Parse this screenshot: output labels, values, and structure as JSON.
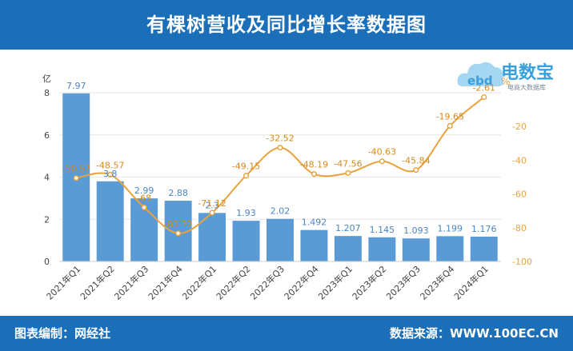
{
  "header": {
    "title": "有棵树营收及同比增长率数据图"
  },
  "footer": {
    "editor": "图表编制：网经社",
    "source": "数据来源：WWW.100EC.CN"
  },
  "logo": {
    "main": "电数宝",
    "sub": "电商大数据库",
    "mark": "ebd"
  },
  "chart_data": {
    "type": "bar",
    "categories": [
      "2021年Q1",
      "2021年Q2",
      "2021年Q3",
      "2021年Q4",
      "2022年Q1",
      "2022年Q2",
      "2022年Q3",
      "2022年Q4",
      "2023年Q1",
      "2023年Q2",
      "2023年Q3",
      "2023年Q4",
      "2024年Q1"
    ],
    "series": [
      {
        "type": "bar",
        "values": [
          7.97,
          3.8,
          2.99,
          2.88,
          2.3,
          1.93,
          2.02,
          1.492,
          1.207,
          1.145,
          1.093,
          1.199,
          1.176
        ],
        "labels": [
          "7.97",
          "3.8",
          "2.99",
          "2.88",
          "2.3",
          "1.93",
          "2.02",
          "1.492",
          "1.207",
          "1.145",
          "1.093",
          "1.199",
          "1.176"
        ],
        "color": "#5b9bd5",
        "axis": "left"
      },
      {
        "type": "line",
        "values": [
          -50.57,
          -48.57,
          -68,
          -83.32,
          -71.12,
          -49.15,
          -32.52,
          -48.19,
          -47.56,
          -40.63,
          -45.84,
          -19.65,
          -2.61
        ],
        "labels": [
          "-50.57",
          "-48.57",
          "-68",
          "-83.32",
          "-71.12",
          "-49.15",
          "-32.52",
          "-48.19",
          "-47.56",
          "-40.63",
          "-45.84",
          "-19.65",
          "-2.61"
        ],
        "color": "#e8a33d",
        "axis": "right"
      }
    ],
    "ylabel": "亿",
    "y2label": "%",
    "ylim": [
      0,
      8
    ],
    "yticks": [
      0,
      2,
      4,
      6,
      8
    ],
    "y2lim": [
      -100,
      0
    ],
    "y2ticks": [
      -20,
      -40,
      -60,
      -80,
      -100
    ],
    "grid": true
  }
}
